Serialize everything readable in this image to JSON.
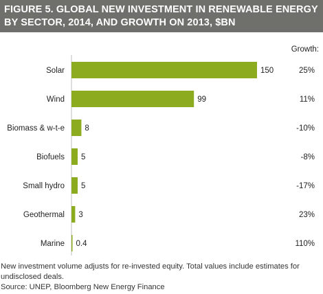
{
  "header": {
    "title": "FIGURE 5. GLOBAL NEW INVESTMENT IN RENEWABLE ENERGY BY SECTOR, 2014, AND GROWTH ON 2013, $BN"
  },
  "colors": {
    "header_bg": "#6f6f6c",
    "bar": "#8dab1e"
  },
  "chart_data": {
    "type": "bar",
    "orientation": "horizontal",
    "categories": [
      "Solar",
      "Wind",
      "Biomass & w-t-e",
      "Biofuels",
      "Small hydro",
      "Geothermal",
      "Marine"
    ],
    "values": [
      150,
      99,
      8,
      5,
      5,
      3,
      0.4
    ],
    "value_labels": [
      "150",
      "99",
      "8",
      "5",
      "5",
      "3",
      "0.4"
    ],
    "growth_header": "Growth:",
    "growth": [
      "25%",
      "11%",
      "-10%",
      "-8%",
      "-17%",
      "23%",
      "110%"
    ],
    "title": "FIGURE 5. GLOBAL NEW INVESTMENT IN RENEWABLE ENERGY BY SECTOR, 2014, AND GROWTH ON 2013, $BN",
    "xlim": [
      0,
      150
    ],
    "grid": false,
    "legend": "none"
  },
  "footnote": "New investment volume adjusts for re-invested equity.  Total values include estimates for undisclosed deals.",
  "source": "Source: UNEP, Bloomberg New Energy Finance"
}
